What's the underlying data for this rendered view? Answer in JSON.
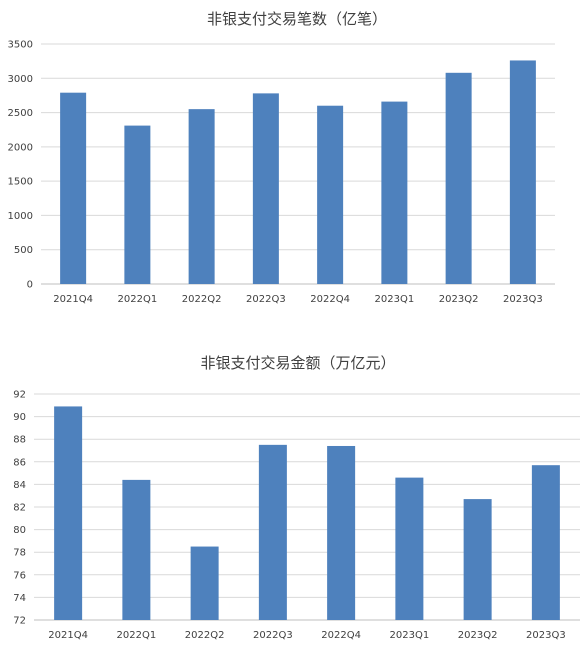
{
  "chart_data": [
    {
      "type": "bar",
      "title": "非银支付交易笔数（亿笔）",
      "categories": [
        "2021Q4",
        "2022Q1",
        "2022Q2",
        "2022Q3",
        "2022Q4",
        "2023Q1",
        "2023Q2",
        "2023Q3"
      ],
      "values": [
        2790,
        2310,
        2550,
        2780,
        2600,
        2660,
        3080,
        3260
      ],
      "ylim": [
        0,
        3500
      ],
      "yticks": [
        0,
        500,
        1000,
        1500,
        2000,
        2500,
        3000,
        3500
      ],
      "grid": true,
      "color": "#4e81bd"
    },
    {
      "type": "bar",
      "title": "非银支付交易金额（万亿元）",
      "categories": [
        "2021Q4",
        "2022Q1",
        "2022Q2",
        "2022Q3",
        "2022Q4",
        "2023Q1",
        "2023Q2",
        "2023Q3"
      ],
      "values": [
        90.9,
        84.4,
        78.5,
        87.5,
        87.4,
        84.6,
        82.7,
        85.7
      ],
      "ylim": [
        72,
        92
      ],
      "yticks": [
        72,
        74,
        76,
        78,
        80,
        82,
        84,
        86,
        88,
        90,
        92
      ],
      "grid": true,
      "color": "#4e81bd"
    }
  ]
}
